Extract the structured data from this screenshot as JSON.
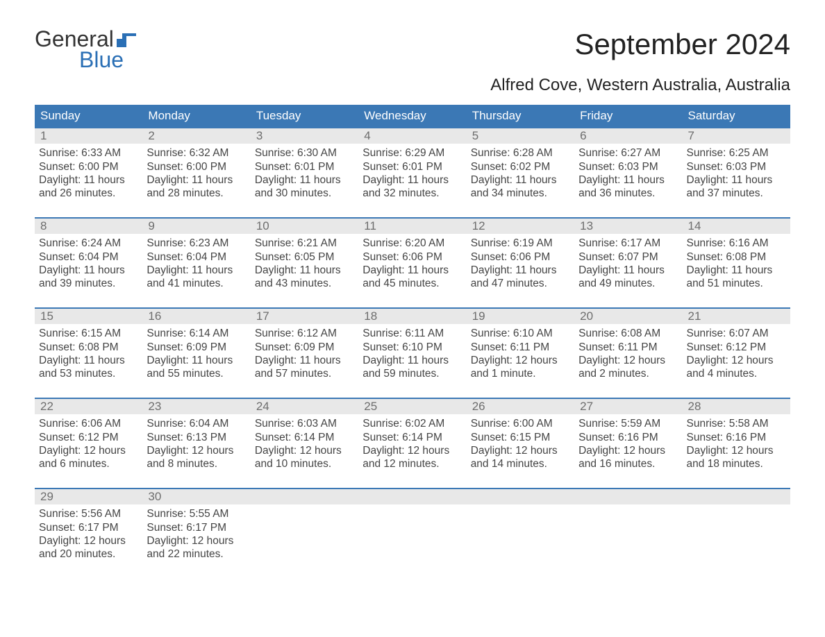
{
  "logo": {
    "word1": "General",
    "word2": "Blue"
  },
  "title": "September 2024",
  "subtitle": "Alfred Cove, Western Australia, Australia",
  "colors": {
    "header_bg": "#3b78b5",
    "header_text": "#ffffff",
    "daynum_bg": "#e8e8e8",
    "daynum_text": "#6d6d6d",
    "body_text": "#444444",
    "accent": "#2a6fb5",
    "page_bg": "#ffffff",
    "week_border": "#3b78b5"
  },
  "fontsizes": {
    "title": 42,
    "subtitle": 24,
    "dayhead": 17,
    "daynum": 17,
    "body": 15.5,
    "logo": 32
  },
  "day_names": [
    "Sunday",
    "Monday",
    "Tuesday",
    "Wednesday",
    "Thursday",
    "Friday",
    "Saturday"
  ],
  "layout": {
    "columns": 7,
    "rows": 5
  },
  "days": [
    {
      "n": "1",
      "sunrise": "Sunrise: 6:33 AM",
      "sunset": "Sunset: 6:00 PM",
      "daylight": "Daylight: 11 hours and 26 minutes."
    },
    {
      "n": "2",
      "sunrise": "Sunrise: 6:32 AM",
      "sunset": "Sunset: 6:00 PM",
      "daylight": "Daylight: 11 hours and 28 minutes."
    },
    {
      "n": "3",
      "sunrise": "Sunrise: 6:30 AM",
      "sunset": "Sunset: 6:01 PM",
      "daylight": "Daylight: 11 hours and 30 minutes."
    },
    {
      "n": "4",
      "sunrise": "Sunrise: 6:29 AM",
      "sunset": "Sunset: 6:01 PM",
      "daylight": "Daylight: 11 hours and 32 minutes."
    },
    {
      "n": "5",
      "sunrise": "Sunrise: 6:28 AM",
      "sunset": "Sunset: 6:02 PM",
      "daylight": "Daylight: 11 hours and 34 minutes."
    },
    {
      "n": "6",
      "sunrise": "Sunrise: 6:27 AM",
      "sunset": "Sunset: 6:03 PM",
      "daylight": "Daylight: 11 hours and 36 minutes."
    },
    {
      "n": "7",
      "sunrise": "Sunrise: 6:25 AM",
      "sunset": "Sunset: 6:03 PM",
      "daylight": "Daylight: 11 hours and 37 minutes."
    },
    {
      "n": "8",
      "sunrise": "Sunrise: 6:24 AM",
      "sunset": "Sunset: 6:04 PM",
      "daylight": "Daylight: 11 hours and 39 minutes."
    },
    {
      "n": "9",
      "sunrise": "Sunrise: 6:23 AM",
      "sunset": "Sunset: 6:04 PM",
      "daylight": "Daylight: 11 hours and 41 minutes."
    },
    {
      "n": "10",
      "sunrise": "Sunrise: 6:21 AM",
      "sunset": "Sunset: 6:05 PM",
      "daylight": "Daylight: 11 hours and 43 minutes."
    },
    {
      "n": "11",
      "sunrise": "Sunrise: 6:20 AM",
      "sunset": "Sunset: 6:06 PM",
      "daylight": "Daylight: 11 hours and 45 minutes."
    },
    {
      "n": "12",
      "sunrise": "Sunrise: 6:19 AM",
      "sunset": "Sunset: 6:06 PM",
      "daylight": "Daylight: 11 hours and 47 minutes."
    },
    {
      "n": "13",
      "sunrise": "Sunrise: 6:17 AM",
      "sunset": "Sunset: 6:07 PM",
      "daylight": "Daylight: 11 hours and 49 minutes."
    },
    {
      "n": "14",
      "sunrise": "Sunrise: 6:16 AM",
      "sunset": "Sunset: 6:08 PM",
      "daylight": "Daylight: 11 hours and 51 minutes."
    },
    {
      "n": "15",
      "sunrise": "Sunrise: 6:15 AM",
      "sunset": "Sunset: 6:08 PM",
      "daylight": "Daylight: 11 hours and 53 minutes."
    },
    {
      "n": "16",
      "sunrise": "Sunrise: 6:14 AM",
      "sunset": "Sunset: 6:09 PM",
      "daylight": "Daylight: 11 hours and 55 minutes."
    },
    {
      "n": "17",
      "sunrise": "Sunrise: 6:12 AM",
      "sunset": "Sunset: 6:09 PM",
      "daylight": "Daylight: 11 hours and 57 minutes."
    },
    {
      "n": "18",
      "sunrise": "Sunrise: 6:11 AM",
      "sunset": "Sunset: 6:10 PM",
      "daylight": "Daylight: 11 hours and 59 minutes."
    },
    {
      "n": "19",
      "sunrise": "Sunrise: 6:10 AM",
      "sunset": "Sunset: 6:11 PM",
      "daylight": "Daylight: 12 hours and 1 minute."
    },
    {
      "n": "20",
      "sunrise": "Sunrise: 6:08 AM",
      "sunset": "Sunset: 6:11 PM",
      "daylight": "Daylight: 12 hours and 2 minutes."
    },
    {
      "n": "21",
      "sunrise": "Sunrise: 6:07 AM",
      "sunset": "Sunset: 6:12 PM",
      "daylight": "Daylight: 12 hours and 4 minutes."
    },
    {
      "n": "22",
      "sunrise": "Sunrise: 6:06 AM",
      "sunset": "Sunset: 6:12 PM",
      "daylight": "Daylight: 12 hours and 6 minutes."
    },
    {
      "n": "23",
      "sunrise": "Sunrise: 6:04 AM",
      "sunset": "Sunset: 6:13 PM",
      "daylight": "Daylight: 12 hours and 8 minutes."
    },
    {
      "n": "24",
      "sunrise": "Sunrise: 6:03 AM",
      "sunset": "Sunset: 6:14 PM",
      "daylight": "Daylight: 12 hours and 10 minutes."
    },
    {
      "n": "25",
      "sunrise": "Sunrise: 6:02 AM",
      "sunset": "Sunset: 6:14 PM",
      "daylight": "Daylight: 12 hours and 12 minutes."
    },
    {
      "n": "26",
      "sunrise": "Sunrise: 6:00 AM",
      "sunset": "Sunset: 6:15 PM",
      "daylight": "Daylight: 12 hours and 14 minutes."
    },
    {
      "n": "27",
      "sunrise": "Sunrise: 5:59 AM",
      "sunset": "Sunset: 6:16 PM",
      "daylight": "Daylight: 12 hours and 16 minutes."
    },
    {
      "n": "28",
      "sunrise": "Sunrise: 5:58 AM",
      "sunset": "Sunset: 6:16 PM",
      "daylight": "Daylight: 12 hours and 18 minutes."
    },
    {
      "n": "29",
      "sunrise": "Sunrise: 5:56 AM",
      "sunset": "Sunset: 6:17 PM",
      "daylight": "Daylight: 12 hours and 20 minutes."
    },
    {
      "n": "30",
      "sunrise": "Sunrise: 5:55 AM",
      "sunset": "Sunset: 6:17 PM",
      "daylight": "Daylight: 12 hours and 22 minutes."
    }
  ]
}
